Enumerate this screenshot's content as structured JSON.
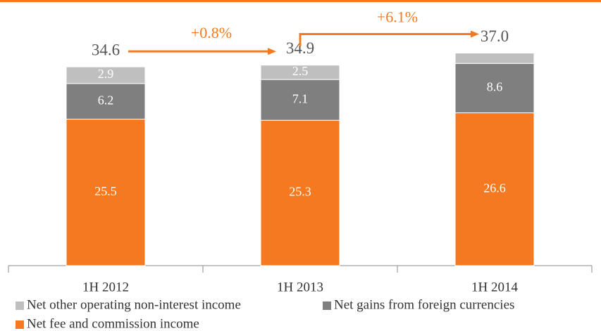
{
  "chart_data": {
    "type": "stacked_bar",
    "categories": [
      "1H 2012",
      "1H 2013",
      "1H 2014"
    ],
    "series": [
      {
        "name": "Net fee and commission income",
        "color": "#f47920",
        "values": [
          25.5,
          25.3,
          26.6
        ]
      },
      {
        "name": "Net gains from foreign currencies",
        "color": "#7f7f7f",
        "values": [
          6.2,
          7.1,
          8.6
        ]
      },
      {
        "name": "Net other operating non-interest income",
        "color": "#bfbfbf",
        "values": [
          2.9,
          2.5,
          1.8
        ],
        "value_labels": [
          "2.9",
          "2.5",
          null
        ]
      }
    ],
    "totals": [
      34.6,
      34.9,
      37
    ],
    "total_labels": [
      "34.6",
      "34.9",
      "37.0"
    ],
    "growth_labels": [
      "+0.8%",
      "+6.1%"
    ],
    "ylim": [
      0,
      40
    ],
    "grid": false
  }
}
